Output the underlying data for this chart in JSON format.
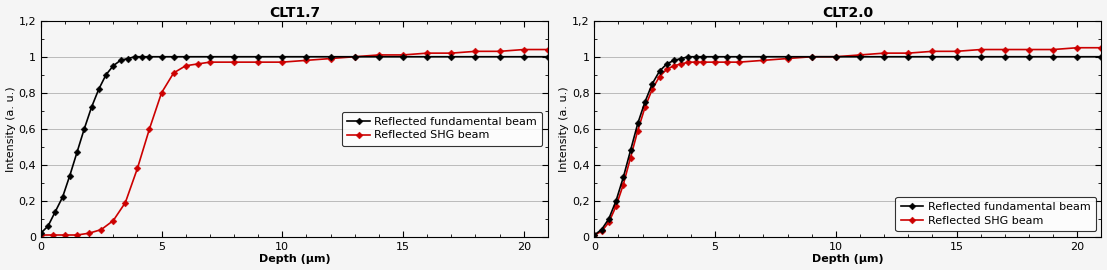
{
  "left_title": "CLT1.7",
  "right_title": "CLT2.0",
  "xlabel": "Depth (μm)",
  "ylabel_left": "Intensity (a. u.)",
  "ylabel_right": "Intensity (a. u.)",
  "xlim": [
    0,
    21
  ],
  "ylim": [
    0,
    1.2
  ],
  "yticks": [
    0,
    0.2,
    0.4,
    0.6,
    0.8,
    1.0,
    1.2
  ],
  "ytick_labels": [
    "0",
    "0,2",
    "0,4",
    "0,6",
    "0,8",
    "1",
    "1,2"
  ],
  "xticks": [
    0,
    5,
    10,
    15,
    20
  ],
  "legend_entries": [
    "Reflected fundamental beam",
    "Reflected SHG beam"
  ],
  "color_fundamental": "#000000",
  "color_shg": "#cc0000",
  "background_color": "#f5f5f5",
  "grid_color": "#bbbbbb",
  "left_fund_x": [
    0.0,
    0.3,
    0.6,
    0.9,
    1.2,
    1.5,
    1.8,
    2.1,
    2.4,
    2.7,
    3.0,
    3.3,
    3.6,
    3.9,
    4.2,
    4.5,
    5.0,
    5.5,
    6.0,
    7.0,
    8.0,
    9.0,
    10.0,
    11.0,
    12.0,
    13.0,
    14.0,
    15.0,
    16.0,
    17.0,
    18.0,
    19.0,
    20.0,
    21.0
  ],
  "left_fund_y": [
    0.02,
    0.06,
    0.14,
    0.22,
    0.34,
    0.47,
    0.6,
    0.72,
    0.82,
    0.9,
    0.95,
    0.98,
    0.99,
    1.0,
    1.0,
    1.0,
    1.0,
    1.0,
    1.0,
    1.0,
    1.0,
    1.0,
    1.0,
    1.0,
    1.0,
    1.0,
    1.0,
    1.0,
    1.0,
    1.0,
    1.0,
    1.0,
    1.0,
    1.0
  ],
  "left_shg_x": [
    0.0,
    0.5,
    1.0,
    1.5,
    2.0,
    2.5,
    3.0,
    3.5,
    4.0,
    4.5,
    5.0,
    5.5,
    6.0,
    6.5,
    7.0,
    8.0,
    9.0,
    10.0,
    11.0,
    12.0,
    13.0,
    14.0,
    15.0,
    16.0,
    17.0,
    18.0,
    19.0,
    20.0,
    21.0
  ],
  "left_shg_y": [
    0.01,
    0.01,
    0.01,
    0.01,
    0.02,
    0.04,
    0.09,
    0.19,
    0.38,
    0.6,
    0.8,
    0.91,
    0.95,
    0.96,
    0.97,
    0.97,
    0.97,
    0.97,
    0.98,
    0.99,
    1.0,
    1.01,
    1.01,
    1.02,
    1.02,
    1.03,
    1.03,
    1.04,
    1.04
  ],
  "right_fund_x": [
    0.0,
    0.3,
    0.6,
    0.9,
    1.2,
    1.5,
    1.8,
    2.1,
    2.4,
    2.7,
    3.0,
    3.3,
    3.6,
    3.9,
    4.2,
    4.5,
    5.0,
    5.5,
    6.0,
    7.0,
    8.0,
    9.0,
    10.0,
    11.0,
    12.0,
    13.0,
    14.0,
    15.0,
    16.0,
    17.0,
    18.0,
    19.0,
    20.0,
    21.0
  ],
  "right_fund_y": [
    0.01,
    0.04,
    0.1,
    0.2,
    0.33,
    0.48,
    0.63,
    0.75,
    0.85,
    0.92,
    0.96,
    0.98,
    0.99,
    1.0,
    1.0,
    1.0,
    1.0,
    1.0,
    1.0,
    1.0,
    1.0,
    1.0,
    1.0,
    1.0,
    1.0,
    1.0,
    1.0,
    1.0,
    1.0,
    1.0,
    1.0,
    1.0,
    1.0,
    1.0
  ],
  "right_shg_x": [
    0.0,
    0.3,
    0.6,
    0.9,
    1.2,
    1.5,
    1.8,
    2.1,
    2.4,
    2.7,
    3.0,
    3.3,
    3.6,
    3.9,
    4.2,
    4.5,
    5.0,
    5.5,
    6.0,
    7.0,
    8.0,
    9.0,
    10.0,
    11.0,
    12.0,
    13.0,
    14.0,
    15.0,
    16.0,
    17.0,
    18.0,
    19.0,
    20.0,
    21.0
  ],
  "right_shg_y": [
    0.01,
    0.03,
    0.08,
    0.17,
    0.29,
    0.44,
    0.59,
    0.72,
    0.82,
    0.89,
    0.93,
    0.95,
    0.96,
    0.97,
    0.97,
    0.97,
    0.97,
    0.97,
    0.97,
    0.98,
    0.99,
    1.0,
    1.0,
    1.01,
    1.02,
    1.02,
    1.03,
    1.03,
    1.04,
    1.04,
    1.04,
    1.04,
    1.05,
    1.05
  ],
  "marker_size": 3.5,
  "line_width": 1.2,
  "font_size_title": 10,
  "font_size_axis": 8,
  "font_size_tick": 8,
  "font_size_legend": 8
}
